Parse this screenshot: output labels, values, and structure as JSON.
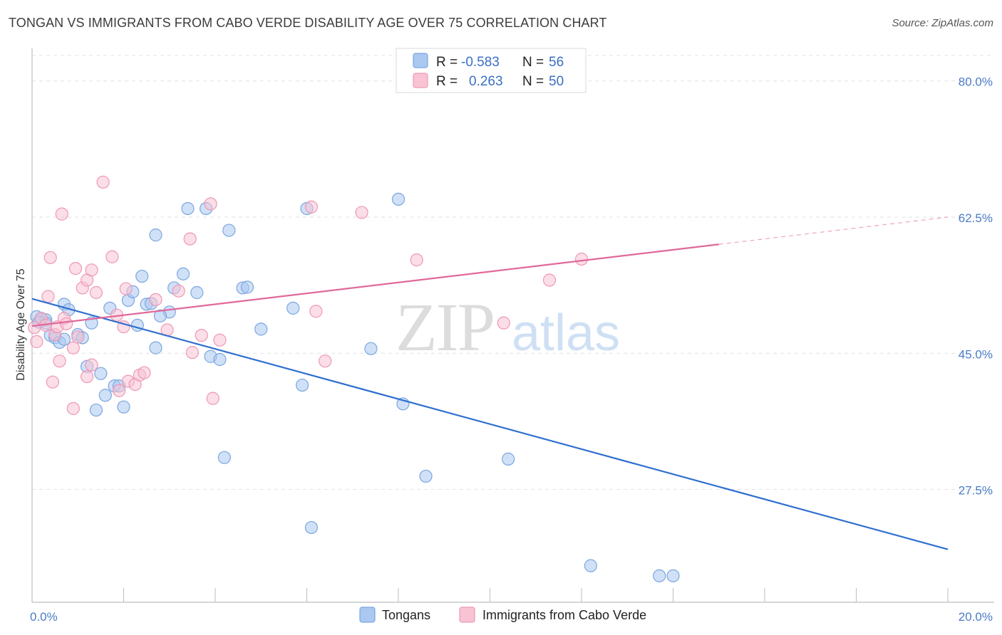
{
  "header": {
    "title": "TONGAN VS IMMIGRANTS FROM CABO VERDE DISABILITY AGE OVER 75 CORRELATION CHART",
    "source": "Source: ZipAtlas.com"
  },
  "watermark": {
    "zip": "ZIP",
    "atlas": "atlas"
  },
  "legend": {
    "rows": [
      {
        "r_label": "R =",
        "r_value": "-0.583",
        "n_label": "N =",
        "n_value": "56",
        "color": "#aac8f0",
        "stroke": "#7aa6e0"
      },
      {
        "r_label": "R =",
        "r_value": "0.263",
        "n_label": "N =",
        "n_value": "50",
        "color": "#f8c3d3",
        "stroke": "#ee98b4"
      }
    ]
  },
  "bottom_legend": [
    {
      "label": "Tongans",
      "color": "#aac8f0",
      "stroke": "#7aa6e0"
    },
    {
      "label": "Immigrants from Cabo Verde",
      "color": "#f8c3d3",
      "stroke": "#ee98b4"
    }
  ],
  "chart_data": {
    "type": "scatter",
    "ylabel": "Disability Age Over 75",
    "xlim": [
      0,
      20
    ],
    "ylim": [
      13,
      84
    ],
    "x_tick_labels": [
      {
        "value": 0,
        "label": "0.0%"
      },
      {
        "value": 20,
        "label": "20.0%"
      }
    ],
    "y_ticks": [
      {
        "value": 80,
        "label": "80.0%"
      },
      {
        "value": 62.5,
        "label": "62.5%"
      },
      {
        "value": 45,
        "label": "45.0%"
      },
      {
        "value": 27.5,
        "label": "27.5%"
      }
    ],
    "grid": true,
    "series": [
      {
        "name": "Tongans",
        "color": "#aac8f0",
        "stroke": "#7aa6e0",
        "line_color": "#2f6fcf",
        "trend": {
          "x0": 0,
          "y0": 52.0,
          "x1": 20,
          "y1": 19.8,
          "dash_from": null
        },
        "points": [
          [
            0.1,
            49.7
          ],
          [
            0.2,
            49.4
          ],
          [
            0.3,
            49.3
          ],
          [
            0.3,
            48.9
          ],
          [
            0.4,
            47.3
          ],
          [
            0.5,
            47.0
          ],
          [
            0.6,
            46.4
          ],
          [
            0.7,
            46.8
          ],
          [
            0.7,
            51.3
          ],
          [
            0.8,
            50.6
          ],
          [
            1.0,
            47.4
          ],
          [
            1.1,
            47.0
          ],
          [
            1.2,
            43.3
          ],
          [
            1.3,
            48.9
          ],
          [
            1.5,
            42.4
          ],
          [
            1.6,
            39.6
          ],
          [
            1.7,
            50.8
          ],
          [
            1.8,
            40.8
          ],
          [
            1.9,
            40.8
          ],
          [
            2.0,
            38.1
          ],
          [
            2.1,
            51.8
          ],
          [
            2.2,
            52.9
          ],
          [
            2.3,
            48.6
          ],
          [
            2.4,
            54.9
          ],
          [
            2.5,
            51.3
          ],
          [
            2.6,
            51.4
          ],
          [
            2.7,
            60.2
          ],
          [
            2.7,
            45.7
          ],
          [
            3.0,
            50.3
          ],
          [
            3.1,
            53.4
          ],
          [
            3.3,
            55.2
          ],
          [
            3.4,
            63.6
          ],
          [
            3.6,
            52.8
          ],
          [
            3.8,
            63.6
          ],
          [
            3.9,
            44.6
          ],
          [
            4.1,
            44.2
          ],
          [
            4.2,
            31.6
          ],
          [
            4.3,
            60.8
          ],
          [
            4.6,
            53.4
          ],
          [
            4.7,
            53.5
          ],
          [
            5.0,
            48.1
          ],
          [
            5.7,
            50.8
          ],
          [
            5.9,
            40.9
          ],
          [
            6.0,
            63.6
          ],
          [
            6.1,
            22.6
          ],
          [
            7.4,
            45.6
          ],
          [
            8.0,
            64.8
          ],
          [
            8.1,
            38.5
          ],
          [
            8.6,
            29.2
          ],
          [
            10.4,
            31.4
          ],
          [
            12.2,
            17.7
          ],
          [
            13.7,
            16.4
          ],
          [
            14.0,
            16.4
          ],
          [
            1.4,
            37.7
          ],
          [
            2.8,
            49.8
          ],
          [
            0.15,
            49.0
          ]
        ]
      },
      {
        "name": "Immigrants from Cabo Verde",
        "color": "#f8c3d3",
        "stroke": "#ee98b4",
        "line_color": "#e0689a",
        "trend": {
          "x0": 0,
          "y0": 48.5,
          "x1": 20,
          "y1": 62.5,
          "dash_from": 15.0
        },
        "points": [
          [
            0.05,
            48.3
          ],
          [
            0.1,
            46.5
          ],
          [
            0.2,
            49.5
          ],
          [
            0.3,
            48.6
          ],
          [
            0.35,
            52.3
          ],
          [
            0.4,
            57.3
          ],
          [
            0.45,
            41.3
          ],
          [
            0.5,
            47.4
          ],
          [
            0.55,
            48.4
          ],
          [
            0.6,
            44.0
          ],
          [
            0.65,
            62.9
          ],
          [
            0.7,
            49.5
          ],
          [
            0.75,
            48.8
          ],
          [
            0.9,
            45.7
          ],
          [
            0.9,
            37.9
          ],
          [
            0.95,
            55.9
          ],
          [
            1.0,
            47.1
          ],
          [
            1.1,
            53.4
          ],
          [
            1.2,
            42.0
          ],
          [
            1.2,
            54.4
          ],
          [
            1.3,
            55.7
          ],
          [
            1.3,
            43.5
          ],
          [
            1.4,
            52.8
          ],
          [
            1.55,
            67.0
          ],
          [
            1.75,
            57.4
          ],
          [
            1.85,
            49.9
          ],
          [
            1.9,
            40.2
          ],
          [
            2.0,
            48.4
          ],
          [
            2.05,
            53.3
          ],
          [
            2.1,
            41.4
          ],
          [
            2.25,
            41.0
          ],
          [
            2.35,
            42.2
          ],
          [
            2.45,
            42.5
          ],
          [
            2.7,
            51.9
          ],
          [
            2.95,
            48.0
          ],
          [
            3.2,
            53.0
          ],
          [
            3.45,
            59.7
          ],
          [
            3.5,
            45.1
          ],
          [
            3.7,
            47.3
          ],
          [
            3.9,
            64.2
          ],
          [
            3.95,
            39.2
          ],
          [
            4.1,
            46.7
          ],
          [
            6.1,
            63.8
          ],
          [
            6.2,
            50.4
          ],
          [
            6.4,
            44.0
          ],
          [
            7.2,
            63.1
          ],
          [
            8.4,
            57.0
          ],
          [
            10.3,
            48.9
          ],
          [
            11.3,
            54.4
          ],
          [
            12.0,
            57.1
          ]
        ]
      }
    ]
  }
}
